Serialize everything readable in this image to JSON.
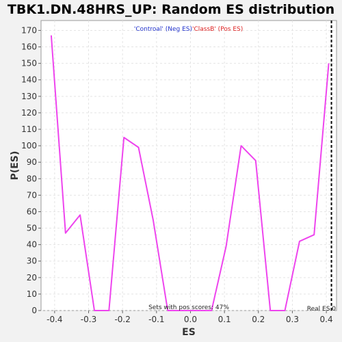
{
  "chart_data": {
    "type": "line",
    "title": "TBK1.DN.48HRS_UP: Random ES distribution",
    "xlabel": "ES",
    "ylabel": "P(ES)",
    "xlim": [
      -0.44,
      0.43
    ],
    "ylim": [
      0,
      176
    ],
    "x_ticks": [
      "-0.4",
      "-0.3",
      "-0.2",
      "-0.1",
      "0.0",
      "0.1",
      "0.2",
      "0.3",
      "0.4"
    ],
    "x_tick_values": [
      -0.4,
      -0.3,
      -0.2,
      -0.1,
      0.0,
      0.1,
      0.2,
      0.3,
      0.4
    ],
    "y_ticks": [
      "0",
      "10",
      "20",
      "30",
      "40",
      "50",
      "60",
      "70",
      "80",
      "90",
      "100",
      "110",
      "120",
      "130",
      "140",
      "150",
      "160",
      "170"
    ],
    "y_tick_values": [
      0,
      10,
      20,
      30,
      40,
      50,
      60,
      70,
      80,
      90,
      100,
      110,
      120,
      130,
      140,
      150,
      160,
      170
    ],
    "grid": true,
    "series": [
      {
        "x": [
          -0.41,
          -0.368,
          -0.325,
          -0.283,
          -0.24,
          -0.196,
          -0.153,
          -0.11,
          -0.067,
          -0.024,
          0.019,
          0.062,
          0.105,
          0.149,
          0.192,
          0.235,
          0.278,
          0.321,
          0.364,
          0.407
        ],
        "y": [
          167,
          47,
          58,
          0,
          0,
          105,
          99,
          55,
          0,
          0,
          0,
          0,
          39,
          100,
          91,
          0,
          0,
          42,
          46,
          150
        ],
        "color": "#ee44ee"
      }
    ],
    "real_es": 0.415,
    "legend": {
      "neg": "'Controal' (Neg ES)",
      "pos": "'ClassB' (Pos ES)",
      "neg_color": "#2233cc",
      "pos_color": "#dd2222"
    },
    "annotations": {
      "pos_scores": "Sets with pos scores: 47%",
      "real_es": "Real ES 0"
    }
  }
}
